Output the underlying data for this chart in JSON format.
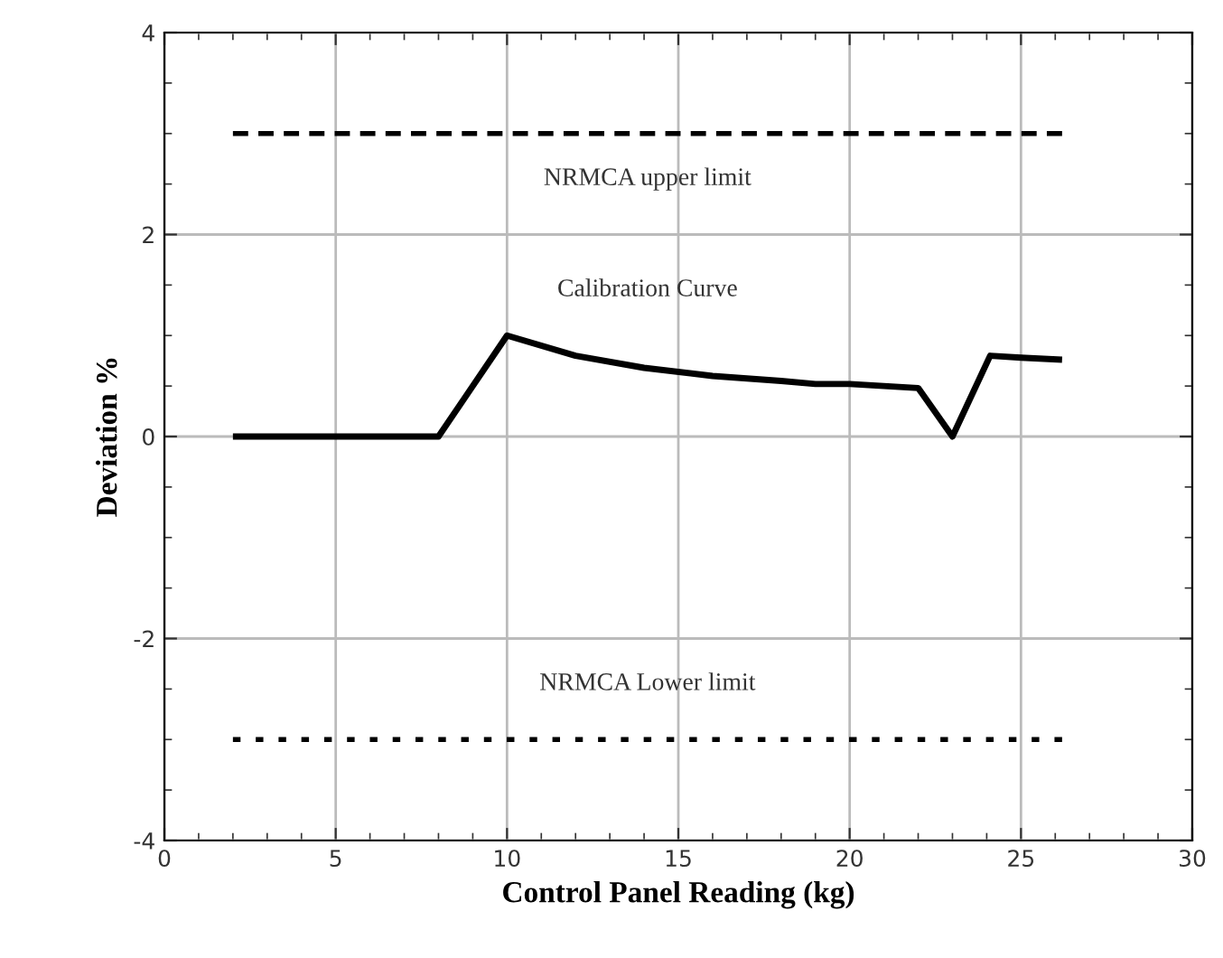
{
  "chart_data": {
    "type": "line",
    "xlabel": "Control Panel Reading (kg)",
    "ylabel": "Deviation %",
    "xlim": [
      0,
      30
    ],
    "xticks": [
      0,
      5,
      10,
      15,
      20,
      25,
      30
    ],
    "ylim": [
      -4,
      4
    ],
    "yticks": [
      -4,
      -2,
      0,
      2,
      4
    ],
    "grid": true,
    "marker": "none",
    "series": [
      {
        "name": "NRMCA upper limit",
        "color": "#000000",
        "line_style": "dashed",
        "x": [
          2,
          26.2
        ],
        "values": [
          3,
          3
        ]
      },
      {
        "name": "Calibration Curve",
        "color": "#000000",
        "line_style": "solid",
        "x": [
          2,
          8,
          9,
          10,
          12,
          14,
          16,
          18,
          19,
          20,
          22,
          23,
          24.1,
          25,
          26.2
        ],
        "values": [
          0,
          0,
          0.5,
          1,
          0.8,
          0.68,
          0.6,
          0.55,
          0.52,
          0.52,
          0.48,
          0,
          0.8,
          0.78,
          0.76
        ]
      },
      {
        "name": "NRMCA Lower limit",
        "color": "#000000",
        "line_style": "dotted",
        "x": [
          2,
          26.2
        ],
        "values": [
          -3,
          -3
        ]
      }
    ]
  }
}
